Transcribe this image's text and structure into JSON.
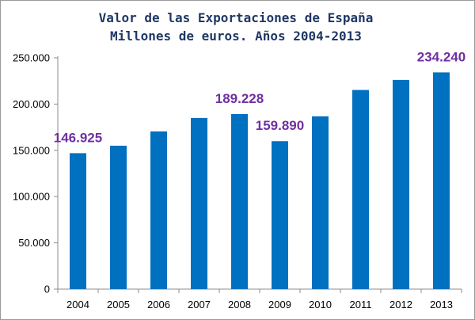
{
  "chart_data": {
    "type": "bar",
    "title_lines": [
      "Valor de las Exportaciones de España",
      "Millones de euros. Años 2004-2013"
    ],
    "xlabel": "",
    "ylabel": "",
    "categories": [
      "2004",
      "2005",
      "2006",
      "2007",
      "2008",
      "2009",
      "2010",
      "2011",
      "2012",
      "2013"
    ],
    "series": [
      {
        "values": [
          146925,
          155005,
          170439,
          185023,
          189228,
          159890,
          186780,
          215230,
          226115,
          234240
        ]
      }
    ],
    "ylim": [
      0,
      250000
    ],
    "yticks": [
      0,
      50000,
      100000,
      150000,
      200000,
      250000
    ],
    "ytick_labels": [
      "0",
      "50.000",
      "100.000",
      "150.000",
      "200.000",
      "250.000"
    ],
    "data_labels": [
      {
        "category": "2004",
        "text": "146.925"
      },
      {
        "category": "2008",
        "text": "189.228"
      },
      {
        "category": "2009",
        "text": "159.890"
      },
      {
        "category": "2013",
        "text": "234.240"
      }
    ],
    "grid": false,
    "legend": "none",
    "bar_color": "#0070c0",
    "label_color": "#7030a0",
    "title_color": "#1f3864"
  }
}
